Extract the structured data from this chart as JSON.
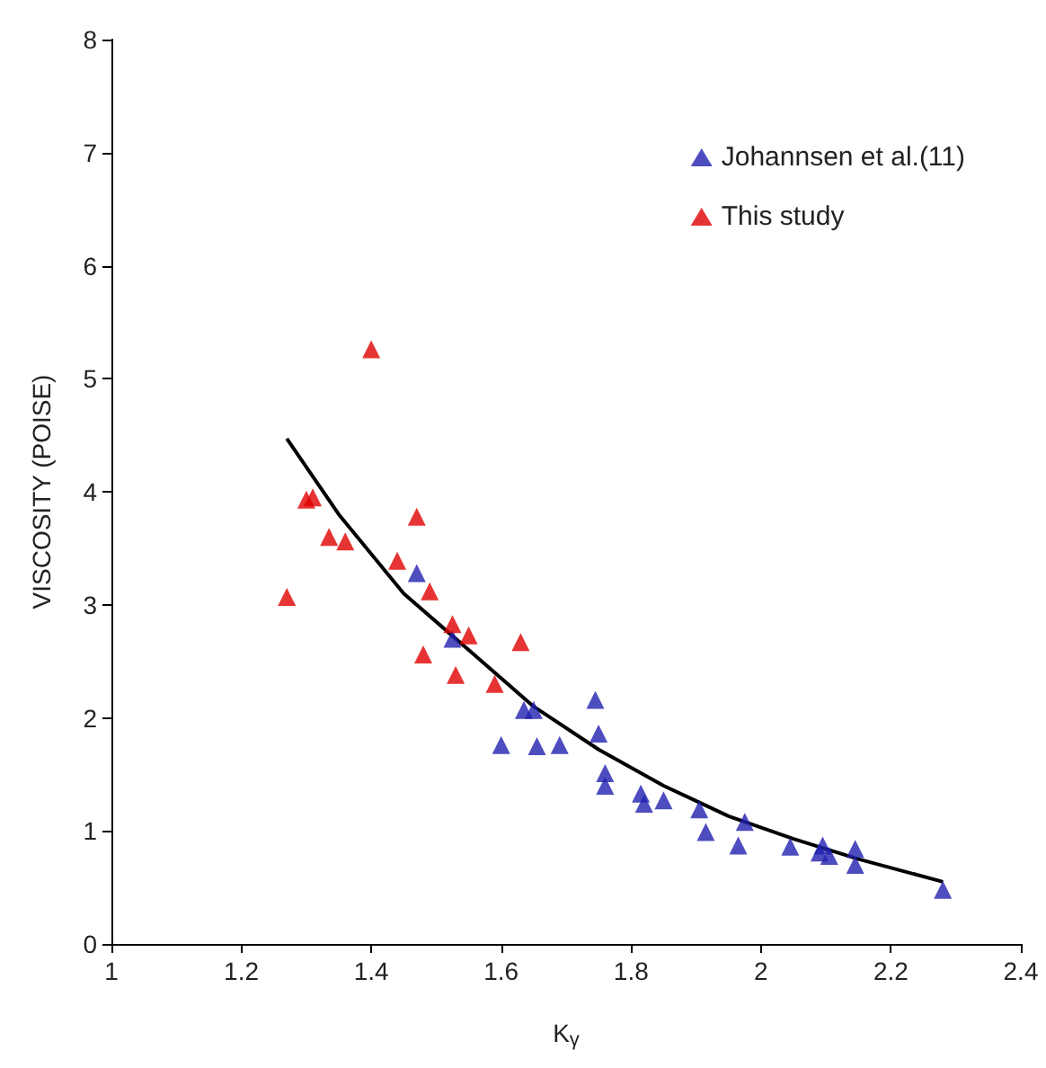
{
  "chart_data": {
    "type": "scatter",
    "xlabel": "K$_{γ}$",
    "ylabel": "VISCOSITY (POISE)",
    "xlim": [
      1,
      2.4
    ],
    "xticks": [
      1,
      1.2,
      1.4,
      1.6,
      1.8,
      2,
      2.2,
      2.4
    ],
    "ylim": [
      0,
      8
    ],
    "yticks": [
      0,
      1,
      2,
      3,
      4,
      5,
      6,
      7,
      8
    ],
    "grid": false,
    "legend": "top right",
    "marker": "triangle",
    "series": [
      {
        "name": "Johannsen et al.(11)",
        "color": "#2020b0",
        "x": [
          1.47,
          1.525,
          1.6,
          1.635,
          1.65,
          1.655,
          1.69,
          1.745,
          1.75,
          1.76,
          1.76,
          1.815,
          1.82,
          1.85,
          1.905,
          1.915,
          1.965,
          1.975,
          2.045,
          2.09,
          2.095,
          2.105,
          2.145,
          2.145,
          2.28
        ],
        "values": [
          3.28,
          2.7,
          1.76,
          2.07,
          2.07,
          1.75,
          1.76,
          2.16,
          1.86,
          1.4,
          1.51,
          1.33,
          1.24,
          1.27,
          1.19,
          0.99,
          0.87,
          1.08,
          0.86,
          0.81,
          0.87,
          0.78,
          0.84,
          0.7,
          0.48
        ]
      },
      {
        "name": "This study",
        "color": "#e00000",
        "x": [
          1.27,
          1.3,
          1.31,
          1.335,
          1.36,
          1.4,
          1.44,
          1.47,
          1.48,
          1.49,
          1.525,
          1.53,
          1.55,
          1.59,
          1.63
        ],
        "values": [
          3.07,
          3.93,
          3.95,
          3.6,
          3.56,
          5.26,
          3.39,
          3.78,
          2.56,
          3.12,
          2.83,
          2.38,
          2.73,
          2.3,
          2.67
        ]
      },
      {
        "type": "line",
        "color": "#000000",
        "marker": "none",
        "x": [
          1.27,
          1.35,
          1.45,
          1.55,
          1.65,
          1.75,
          1.85,
          1.95,
          2.05,
          2.15,
          2.28
        ],
        "values": [
          4.47,
          3.8,
          3.1,
          2.6,
          2.1,
          1.72,
          1.4,
          1.13,
          0.93,
          0.75,
          0.55
        ]
      }
    ]
  }
}
